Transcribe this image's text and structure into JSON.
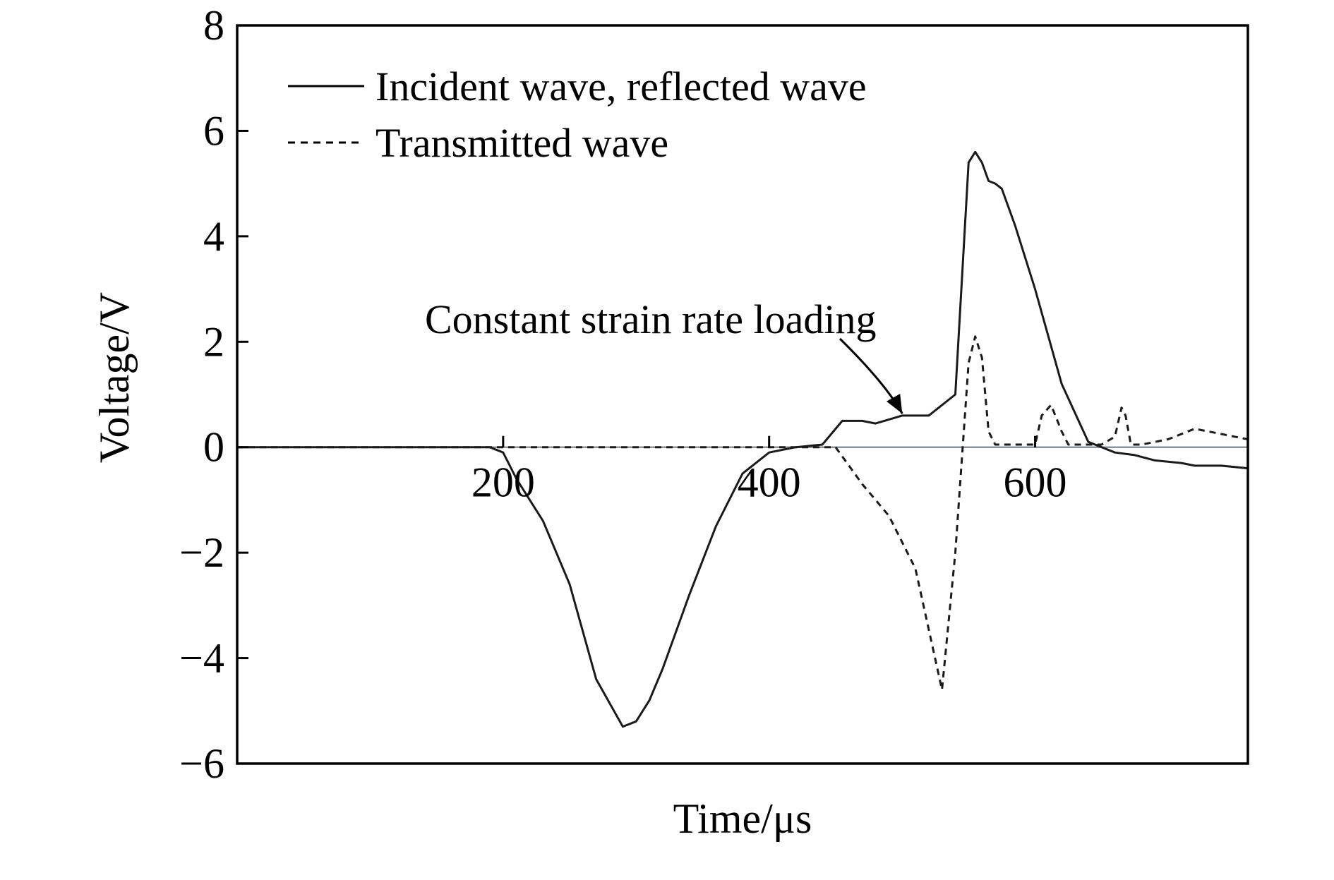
{
  "chart_data": {
    "type": "line",
    "title": "",
    "xlabel": "Time/μs",
    "ylabel": "Voltage/V",
    "xlim": [
      0,
      760
    ],
    "ylim": [
      -6,
      8
    ],
    "xticks": [
      200,
      400,
      600
    ],
    "xtick_labels": [
      "200",
      "400",
      "600"
    ],
    "yticks": [
      -6,
      -4,
      -2,
      0,
      2,
      4,
      6,
      8
    ],
    "ytick_labels": [
      "−6",
      "−4",
      "−2",
      "0",
      "2",
      "4",
      "6",
      "8"
    ],
    "grid": false,
    "legend_position": "top-left",
    "series": [
      {
        "name": "Incident wave, reflected wave",
        "style": "solid",
        "x": [
          0,
          100,
          190,
          200,
          210,
          230,
          250,
          270,
          290,
          300,
          310,
          320,
          340,
          360,
          380,
          400,
          420,
          440,
          455,
          470,
          480,
          500,
          520,
          540,
          550,
          555,
          560,
          565,
          570,
          575,
          585,
          600,
          620,
          640,
          660,
          675,
          690,
          710,
          720,
          740,
          760
        ],
        "values": [
          0,
          0,
          0,
          -0.1,
          -0.6,
          -1.4,
          -2.6,
          -4.4,
          -5.3,
          -5.2,
          -4.8,
          -4.2,
          -2.8,
          -1.5,
          -0.5,
          -0.1,
          0,
          0.05,
          0.5,
          0.5,
          0.45,
          0.6,
          0.6,
          1.0,
          5.4,
          5.6,
          5.4,
          5.05,
          5.0,
          4.9,
          4.2,
          3.0,
          1.2,
          0.1,
          -0.1,
          -0.15,
          -0.25,
          -0.3,
          -0.35,
          -0.35,
          -0.4
        ]
      },
      {
        "name": "Transmitted wave",
        "style": "dashed",
        "x": [
          0,
          200,
          300,
          400,
          450,
          470,
          490,
          510,
          530,
          540,
          550,
          555,
          560,
          565,
          570,
          575,
          600,
          605,
          612,
          620,
          625,
          630,
          640,
          650,
          660,
          665,
          668,
          672,
          680,
          700,
          720,
          740,
          760
        ],
        "values": [
          0,
          0,
          0,
          0,
          0,
          -0.7,
          -1.3,
          -2.3,
          -4.6,
          -2.0,
          1.6,
          2.1,
          1.7,
          0.3,
          0.05,
          0.05,
          0.05,
          0.6,
          0.8,
          0.3,
          0.05,
          0.05,
          0.05,
          0.05,
          0.2,
          0.75,
          0.6,
          0.05,
          0.05,
          0.15,
          0.35,
          0.25,
          0.15
        ]
      }
    ],
    "annotations": [
      {
        "text": "Constant strain rate loading",
        "arrow_to": [
          498,
          0.45
        ]
      }
    ]
  }
}
